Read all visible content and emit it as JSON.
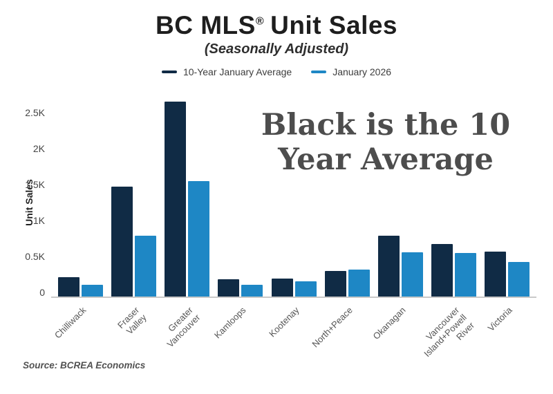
{
  "header": {
    "title_prefix": "BC MLS",
    "title_reg": "®",
    "title_suffix": "Unit Sales",
    "subtitle": "(Seasonally Adjusted)"
  },
  "legend": [
    {
      "label": "10-Year January Average",
      "color": "#102B45"
    },
    {
      "label": "January 2026",
      "color": "#1E87C5"
    }
  ],
  "annotation": {
    "text": "Black is the 10\nYear Average",
    "color": "#4d4d4d"
  },
  "source": "Source: BCREA Economics",
  "chart_data": {
    "type": "bar",
    "title": "BC MLS® Unit Sales",
    "subtitle": "(Seasonally Adjusted)",
    "xlabel": "",
    "ylabel": "Unit Sales",
    "ylim": [
      0,
      2600
    ],
    "grid": false,
    "legend_position": "top",
    "ytick_values": [
      0,
      500,
      1000,
      1500,
      2000,
      2500
    ],
    "ytick_labels": [
      "0",
      "0.5K",
      "1K",
      "1.5K",
      "2K",
      "2.5K"
    ],
    "categories": [
      "Chilliwack",
      "Fraser Valley",
      "Greater\nVancouver",
      "Kamloops",
      "Kootenay",
      "North+Peace",
      "Okanagan",
      "Vancouver\nIsland+Powell\nRiver",
      "Victoria"
    ],
    "series": [
      {
        "name": "10-Year January Average",
        "color": "#102B45",
        "values": [
          215,
          1470,
          2650,
          185,
          195,
          300,
          790,
          670,
          565
        ]
      },
      {
        "name": "January 2026",
        "color": "#1E87C5",
        "values": [
          110,
          785,
          1550,
          110,
          155,
          315,
          555,
          545,
          425
        ]
      }
    ]
  }
}
